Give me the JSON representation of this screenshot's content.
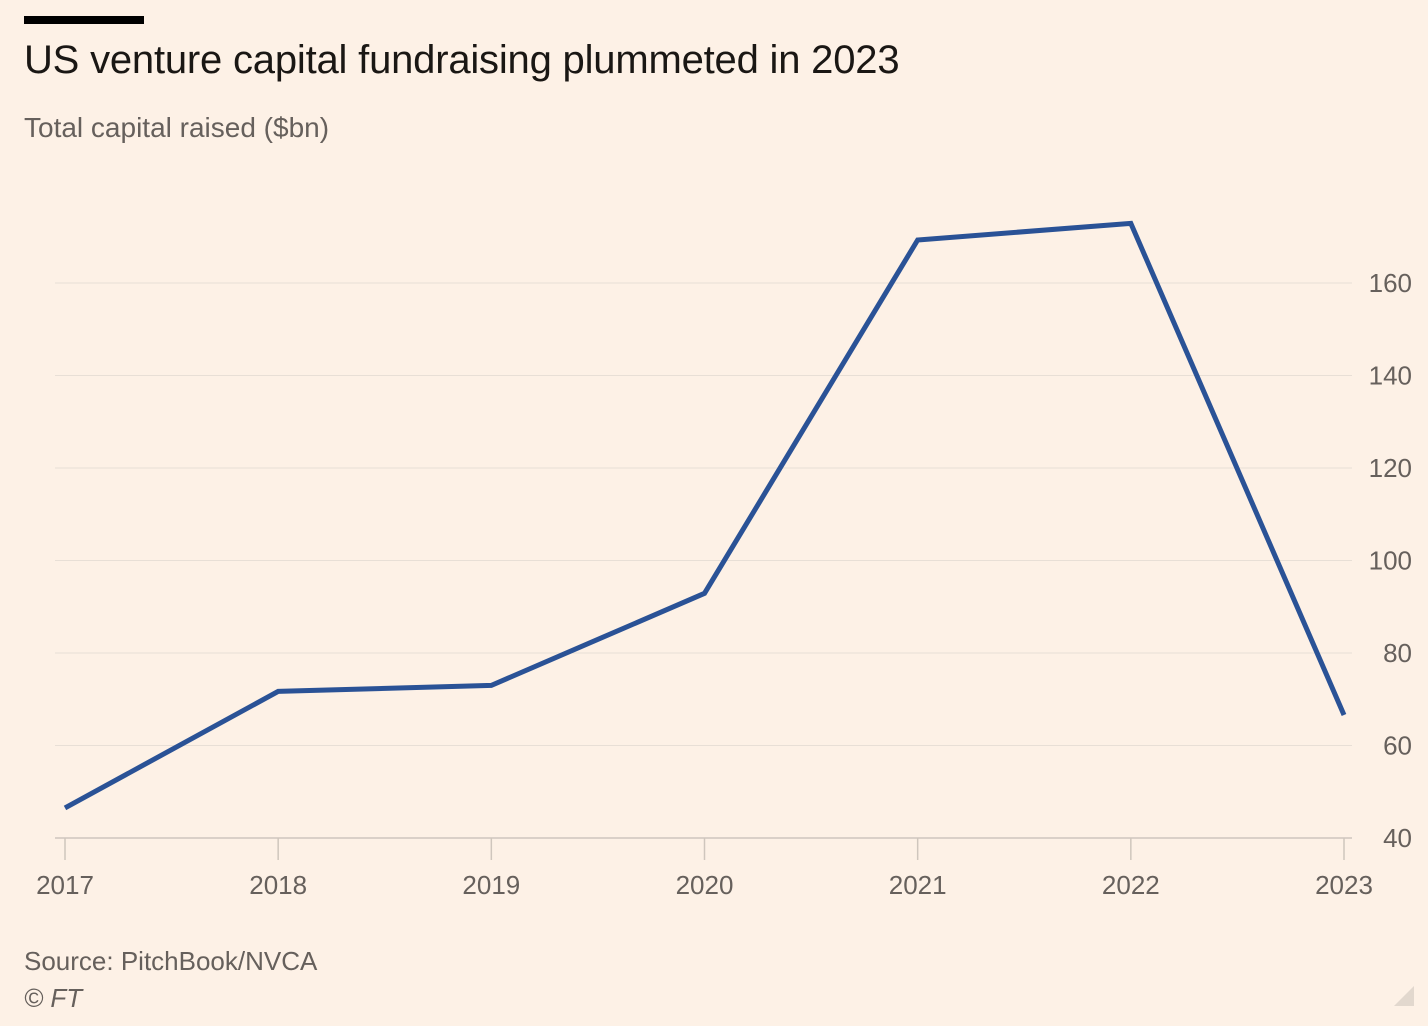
{
  "header": {
    "title": "US venture capital fundraising plummeted in 2023",
    "subtitle": "Total capital raised ($bn)"
  },
  "footer": {
    "source": "Source: PitchBook/NVCA",
    "copyright": "© FT"
  },
  "colors": {
    "line": "#2a5296",
    "background": "#fdf1e6",
    "grid": "#e8dfd6",
    "text": "#66605c"
  },
  "chart_data": {
    "type": "line",
    "title": "US venture capital fundraising plummeted in 2023",
    "subtitle": "Total capital raised ($bn)",
    "xlabel": "",
    "ylabel": "",
    "categories": [
      "2017",
      "2018",
      "2019",
      "2020",
      "2021",
      "2022",
      "2023"
    ],
    "series": [
      {
        "values": [
          46.5,
          71.7,
          73.0,
          92.9,
          169.3,
          172.9,
          66.6
        ]
      }
    ],
    "ylim": [
      40,
      180
    ],
    "yticks": [
      40,
      60,
      80,
      100,
      120,
      140,
      160
    ],
    "y_axis_position": "right",
    "grid": true
  }
}
